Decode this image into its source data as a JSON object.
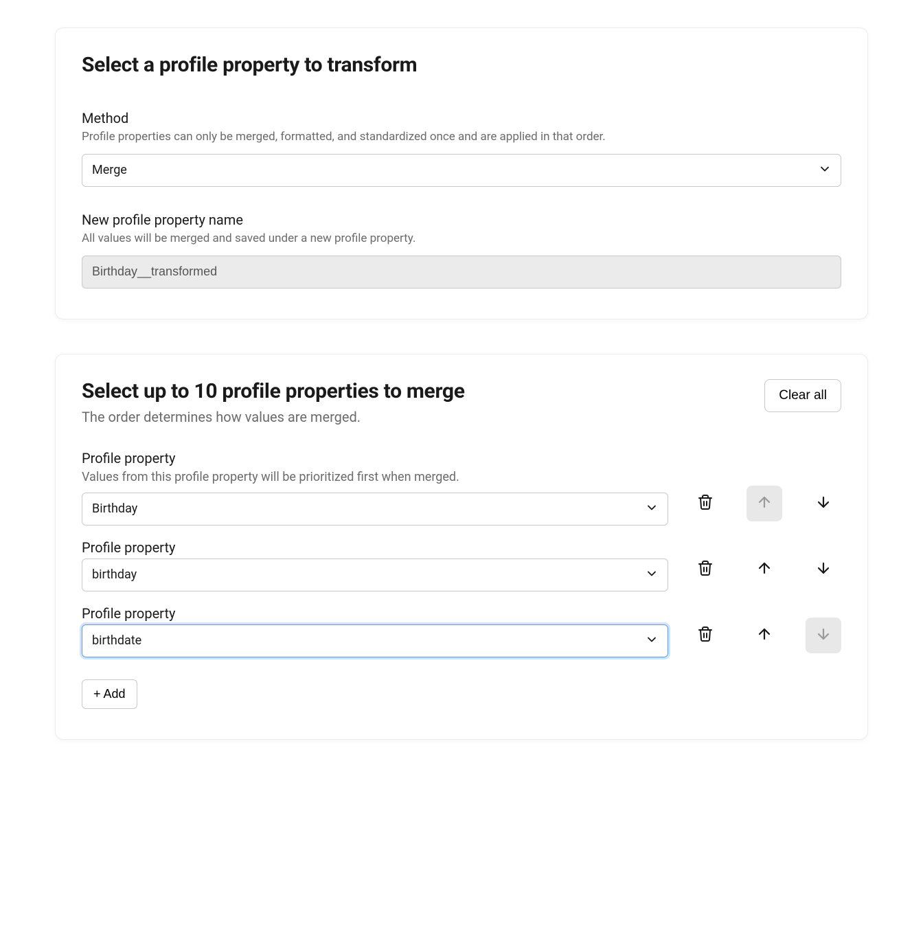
{
  "card1": {
    "title": "Select a profile property to transform",
    "method": {
      "label": "Method",
      "help": "Profile properties can only be merged, formatted, and standardized once and are applied in that order.",
      "value": "Merge"
    },
    "newprop": {
      "label": "New profile property name",
      "help": "All values will be merged and saved under a new profile property.",
      "value": "Birthday__transformed"
    }
  },
  "card2": {
    "title": "Select up to 10 profile properties to merge",
    "subtitle": "The order determines how values are merged.",
    "clear_all": "Clear all",
    "add_label": "+ Add",
    "rows": [
      {
        "label": "Profile property",
        "help": "Values from this profile property will be prioritized first when merged.",
        "value": "Birthday",
        "up_disabled": true,
        "down_disabled": false,
        "focused": false
      },
      {
        "label": "Profile property",
        "help": "",
        "value": "birthday",
        "up_disabled": false,
        "down_disabled": false,
        "focused": false
      },
      {
        "label": "Profile property",
        "help": "",
        "value": "birthdate",
        "up_disabled": false,
        "down_disabled": true,
        "focused": true
      }
    ]
  },
  "colors": {
    "text": "#1a1a1a",
    "muted": "#6b6b6b",
    "border": "#c9c9c9",
    "disabled_bg": "#e8e8e8",
    "readonly_bg": "#ebebeb",
    "focus_ring": "#cfe4ff"
  }
}
